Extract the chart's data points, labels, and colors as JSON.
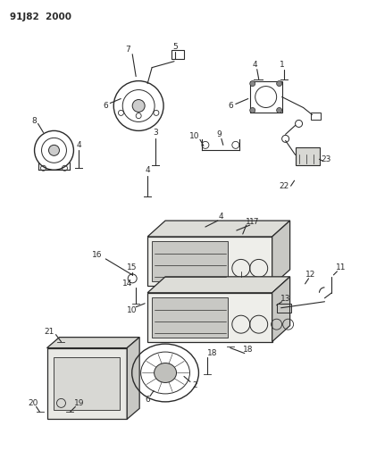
{
  "title": "91J82  2000",
  "bg_color": "#ffffff",
  "line_color": "#2a2a2a",
  "fig_width": 4.12,
  "fig_height": 5.33,
  "dpi": 100
}
